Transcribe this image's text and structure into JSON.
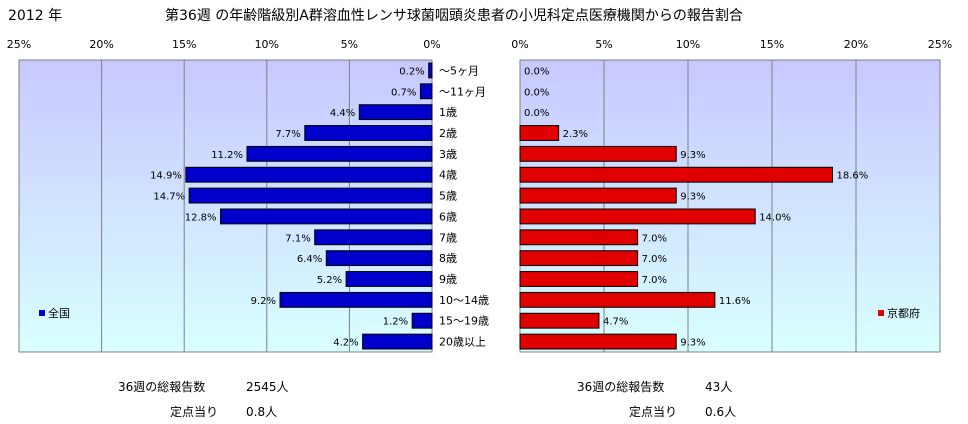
{
  "header": {
    "year": "2012 年",
    "title": "第36週 の年齢階級別A群溶血性レンサ球菌咽頭炎患者の小児科定点医療機関からの報告割合"
  },
  "chart_data": [
    {
      "type": "bar",
      "orientation": "horizontal-reversed",
      "legend": "全国",
      "legend_position": "bottom-left",
      "xlim": [
        0,
        25
      ],
      "xticks": [
        "25%",
        "20%",
        "15%",
        "10%",
        "5%",
        "0%"
      ],
      "grid": true,
      "categories": [
        "～5ヶ月",
        "～11ヶ月",
        "1歳",
        "2歳",
        "3歳",
        "4歳",
        "5歳",
        "6歳",
        "7歳",
        "8歳",
        "9歳",
        "10～14歳",
        "15～19歳",
        "20歳以上"
      ],
      "values": [
        0.2,
        0.7,
        4.4,
        7.7,
        11.2,
        14.9,
        14.7,
        12.8,
        7.1,
        6.4,
        5.2,
        9.2,
        1.2,
        4.2
      ],
      "labels": [
        "0.2%",
        "0.7%",
        "4.4%",
        "7.7%",
        "11.2%",
        "14.9%",
        "14.7%",
        "12.8%",
        "7.1%",
        "6.4%",
        "5.2%",
        "9.2%",
        "1.2%",
        "4.2%"
      ],
      "color": "#0000cc"
    },
    {
      "type": "bar",
      "orientation": "horizontal",
      "legend": "京都府",
      "legend_position": "bottom-right",
      "xlim": [
        0,
        25
      ],
      "xticks": [
        "0%",
        "5%",
        "10%",
        "15%",
        "20%",
        "25%"
      ],
      "grid": true,
      "values": [
        0.0,
        0.0,
        0.0,
        2.3,
        9.3,
        18.6,
        9.3,
        14.0,
        7.0,
        7.0,
        7.0,
        11.6,
        4.7,
        9.3
      ],
      "labels": [
        "0.0%",
        "0.0%",
        "0.0%",
        "2.3%",
        "9.3%",
        "18.6%",
        "9.3%",
        "14.0%",
        "7.0%",
        "7.0%",
        "7.0%",
        "11.6%",
        "4.7%",
        "9.3%"
      ],
      "color": "#e00000"
    }
  ],
  "footer": {
    "left": {
      "total_label": "36週の総報告数",
      "total_value": "2545人",
      "per_label": "定点当り",
      "per_value": "0.8人"
    },
    "right": {
      "total_label": "36週の総報告数",
      "total_value": "43人",
      "per_label": "定点当り",
      "per_value": "0.6人"
    }
  },
  "colors": {
    "plot_top": "#c8c8ff",
    "plot_bottom": "#d8ffff",
    "grid": "#808080"
  }
}
